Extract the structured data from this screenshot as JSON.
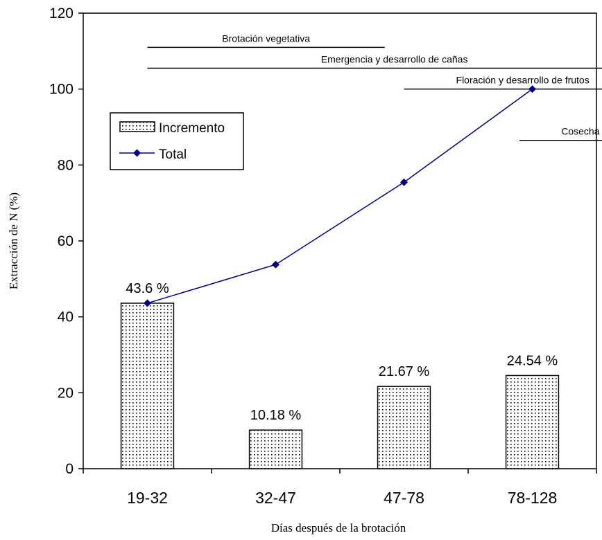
{
  "chart_data": {
    "type": "bar",
    "categories": [
      "19-32",
      "32-47",
      "47-78",
      "78-128"
    ],
    "series": [
      {
        "name": "Incremento",
        "kind": "bar",
        "values": [
          43.6,
          10.18,
          21.67,
          24.54
        ]
      },
      {
        "name": "Total",
        "kind": "line",
        "values": [
          43.6,
          53.78,
          75.45,
          100
        ]
      }
    ],
    "bar_labels": [
      "43.6 %",
      "10.18 %",
      "21.67 %",
      "24.54 %"
    ],
    "xlabel": "Días después de la brotación",
    "ylabel": "Extracción de N  (%)",
    "ylim": [
      0,
      120
    ],
    "yticks": [
      "0",
      "20",
      "40",
      "60",
      "80",
      "100",
      "120"
    ],
    "grid": false,
    "legend_position": "upper-left",
    "colors": {
      "bar_pattern": "#000000",
      "line": "#000080",
      "marker": "#000080"
    },
    "phases": [
      {
        "label": "Brotación vegetativa",
        "x_from": 0.0,
        "x_to": 1.85,
        "y": 111
      },
      {
        "label": "Emergencia y desarrollo de cañas",
        "x_from": 0.0,
        "x_to": 3.85,
        "y": 105.5
      },
      {
        "label": "Floración y desarrollo de frutos",
        "x_from": 2.0,
        "x_to": 3.85,
        "y": 100
      },
      {
        "label": "Cosecha",
        "x_from": 2.9,
        "x_to": 3.85,
        "y": 86.5
      }
    ]
  }
}
